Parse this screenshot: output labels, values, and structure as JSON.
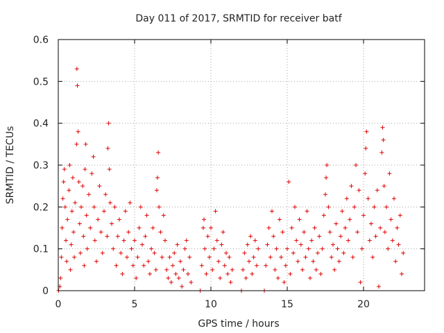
{
  "chart_data": {
    "type": "scatter",
    "title": "Day 011 of 2017, SRMTID for receiver batf",
    "xlabel": "GPS time / hours",
    "ylabel": "SRMTID / TECUs",
    "xlim": [
      0,
      24
    ],
    "ylim": [
      0,
      0.6
    ],
    "xticks": [
      0,
      5,
      10,
      15,
      20
    ],
    "yticks": [
      0,
      0.1,
      0.2,
      0.3,
      0.4,
      0.5,
      0.6
    ],
    "xtick_labels": [
      "0",
      "5",
      "10",
      "15",
      "20"
    ],
    "ytick_labels": [
      "0",
      "0.1",
      "0.2",
      "0.3",
      "0.4",
      "0.5",
      "0.6"
    ],
    "grid": true,
    "marker": "+",
    "color": "#e00000",
    "series": [
      {
        "name": "SRMTID",
        "points": [
          [
            0.02,
            0.0
          ],
          [
            0.1,
            0.01
          ],
          [
            0.15,
            0.03
          ],
          [
            0.2,
            0.08
          ],
          [
            0.25,
            0.15
          ],
          [
            0.3,
            0.22
          ],
          [
            0.35,
            0.26
          ],
          [
            0.4,
            0.29
          ],
          [
            0.45,
            0.2
          ],
          [
            0.5,
            0.12
          ],
          [
            0.55,
            0.07
          ],
          [
            0.6,
            0.17
          ],
          [
            0.7,
            0.24
          ],
          [
            0.75,
            0.3
          ],
          [
            0.8,
            0.05
          ],
          [
            0.85,
            0.11
          ],
          [
            0.9,
            0.19
          ],
          [
            0.95,
            0.27
          ],
          [
            1.0,
            0.14
          ],
          [
            1.05,
            0.08
          ],
          [
            1.1,
            0.21
          ],
          [
            1.2,
            0.35
          ],
          [
            1.22,
            0.53
          ],
          [
            1.25,
            0.49
          ],
          [
            1.3,
            0.38
          ],
          [
            1.35,
            0.26
          ],
          [
            1.4,
            0.16
          ],
          [
            1.45,
            0.09
          ],
          [
            1.5,
            0.2
          ],
          [
            1.6,
            0.25
          ],
          [
            1.65,
            0.13
          ],
          [
            1.7,
            0.06
          ],
          [
            1.75,
            0.29
          ],
          [
            1.8,
            0.35
          ],
          [
            1.85,
            0.18
          ],
          [
            1.9,
            0.1
          ],
          [
            2.0,
            0.23
          ],
          [
            2.1,
            0.15
          ],
          [
            2.2,
            0.28
          ],
          [
            2.3,
            0.32
          ],
          [
            2.35,
            0.2
          ],
          [
            2.4,
            0.12
          ],
          [
            2.5,
            0.07
          ],
          [
            2.6,
            0.17
          ],
          [
            2.7,
            0.25
          ],
          [
            2.8,
            0.14
          ],
          [
            2.9,
            0.09
          ],
          [
            3.0,
            0.19
          ],
          [
            3.1,
            0.23
          ],
          [
            3.2,
            0.13
          ],
          [
            3.25,
            0.34
          ],
          [
            3.3,
            0.4
          ],
          [
            3.35,
            0.29
          ],
          [
            3.4,
            0.21
          ],
          [
            3.5,
            0.16
          ],
          [
            3.6,
            0.1
          ],
          [
            3.7,
            0.2
          ],
          [
            3.8,
            0.06
          ],
          [
            3.9,
            0.13
          ],
          [
            4.0,
            0.17
          ],
          [
            4.1,
            0.09
          ],
          [
            4.2,
            0.04
          ],
          [
            4.3,
            0.12
          ],
          [
            4.4,
            0.19
          ],
          [
            4.5,
            0.08
          ],
          [
            4.6,
            0.14
          ],
          [
            4.7,
            0.21
          ],
          [
            4.8,
            0.1
          ],
          [
            4.9,
            0.06
          ],
          [
            5.0,
            0.12
          ],
          [
            5.1,
            0.03
          ],
          [
            5.2,
            0.08
          ],
          [
            5.3,
            0.15
          ],
          [
            5.4,
            0.2
          ],
          [
            5.5,
            0.11
          ],
          [
            5.6,
            0.06
          ],
          [
            5.7,
            0.13
          ],
          [
            5.8,
            0.18
          ],
          [
            5.9,
            0.07
          ],
          [
            6.0,
            0.04
          ],
          [
            6.1,
            0.1
          ],
          [
            6.2,
            0.15
          ],
          [
            6.3,
            0.09
          ],
          [
            6.4,
            0.05
          ],
          [
            6.45,
            0.24
          ],
          [
            6.5,
            0.27
          ],
          [
            6.55,
            0.33
          ],
          [
            6.6,
            0.2
          ],
          [
            6.7,
            0.14
          ],
          [
            6.8,
            0.08
          ],
          [
            6.9,
            0.18
          ],
          [
            7.0,
            0.12
          ],
          [
            7.1,
            0.05
          ],
          [
            7.2,
            0.03
          ],
          [
            7.3,
            0.08
          ],
          [
            7.4,
            0.02
          ],
          [
            7.5,
            0.06
          ],
          [
            7.6,
            0.09
          ],
          [
            7.7,
            0.04
          ],
          [
            7.8,
            0.11
          ],
          [
            7.9,
            0.03
          ],
          [
            8.0,
            0.07
          ],
          [
            8.1,
            0.01
          ],
          [
            8.2,
            0.05
          ],
          [
            8.3,
            0.1
          ],
          [
            8.4,
            0.12
          ],
          [
            8.5,
            0.04
          ],
          [
            8.6,
            0.08
          ],
          [
            8.7,
            0.02
          ],
          [
            9.3,
            0.0
          ],
          [
            9.4,
            0.06
          ],
          [
            9.5,
            0.15
          ],
          [
            9.55,
            0.17
          ],
          [
            9.6,
            0.1
          ],
          [
            9.7,
            0.04
          ],
          [
            9.8,
            0.13
          ],
          [
            9.9,
            0.08
          ],
          [
            10.0,
            0.15
          ],
          [
            10.1,
            0.05
          ],
          [
            10.2,
            0.1
          ],
          [
            10.3,
            0.19
          ],
          [
            10.4,
            0.12
          ],
          [
            10.5,
            0.07
          ],
          [
            10.6,
            0.03
          ],
          [
            10.7,
            0.11
          ],
          [
            10.8,
            0.14
          ],
          [
            10.9,
            0.06
          ],
          [
            11.0,
            0.09
          ],
          [
            11.1,
            0.04
          ],
          [
            11.2,
            0.08
          ],
          [
            11.3,
            0.02
          ],
          [
            11.4,
            0.05
          ],
          [
            12.0,
            0.0
          ],
          [
            12.1,
            0.05
          ],
          [
            12.2,
            0.09
          ],
          [
            12.3,
            0.03
          ],
          [
            12.4,
            0.11
          ],
          [
            12.5,
            0.07
          ],
          [
            12.6,
            0.13
          ],
          [
            12.7,
            0.04
          ],
          [
            12.8,
            0.08
          ],
          [
            12.9,
            0.12
          ],
          [
            13.0,
            0.06
          ],
          [
            13.1,
            0.1
          ],
          [
            13.5,
            0.0
          ],
          [
            13.6,
            0.06
          ],
          [
            13.7,
            0.11
          ],
          [
            13.8,
            0.15
          ],
          [
            13.9,
            0.08
          ],
          [
            14.0,
            0.19
          ],
          [
            14.1,
            0.13
          ],
          [
            14.2,
            0.05
          ],
          [
            14.3,
            0.1
          ],
          [
            14.4,
            0.03
          ],
          [
            14.5,
            0.17
          ],
          [
            14.6,
            0.08
          ],
          [
            14.7,
            0.14
          ],
          [
            14.8,
            0.02
          ],
          [
            14.9,
            0.06
          ],
          [
            15.0,
            0.1
          ],
          [
            15.1,
            0.26
          ],
          [
            15.2,
            0.04
          ],
          [
            15.3,
            0.15
          ],
          [
            15.4,
            0.09
          ],
          [
            15.5,
            0.2
          ],
          [
            15.6,
            0.12
          ],
          [
            15.7,
            0.07
          ],
          [
            15.8,
            0.17
          ],
          [
            15.9,
            0.11
          ],
          [
            16.0,
            0.05
          ],
          [
            16.1,
            0.14
          ],
          [
            16.2,
            0.08
          ],
          [
            16.3,
            0.19
          ],
          [
            16.4,
            0.1
          ],
          [
            16.5,
            0.03
          ],
          [
            16.6,
            0.12
          ],
          [
            16.7,
            0.07
          ],
          [
            16.8,
            0.15
          ],
          [
            16.9,
            0.05
          ],
          [
            17.0,
            0.09
          ],
          [
            17.1,
            0.13
          ],
          [
            17.2,
            0.04
          ],
          [
            17.3,
            0.1
          ],
          [
            17.4,
            0.18
          ],
          [
            17.5,
            0.23
          ],
          [
            17.55,
            0.27
          ],
          [
            17.6,
            0.3
          ],
          [
            17.7,
            0.2
          ],
          [
            17.8,
            0.14
          ],
          [
            17.9,
            0.08
          ],
          [
            18.0,
            0.11
          ],
          [
            18.1,
            0.05
          ],
          [
            18.2,
            0.16
          ],
          [
            18.3,
            0.1
          ],
          [
            18.4,
            0.07
          ],
          [
            18.5,
            0.13
          ],
          [
            18.6,
            0.19
          ],
          [
            18.7,
            0.09
          ],
          [
            18.8,
            0.15
          ],
          [
            18.9,
            0.22
          ],
          [
            19.0,
            0.12
          ],
          [
            19.1,
            0.17
          ],
          [
            19.2,
            0.25
          ],
          [
            19.3,
            0.08
          ],
          [
            19.4,
            0.2
          ],
          [
            19.5,
            0.3
          ],
          [
            19.6,
            0.14
          ],
          [
            19.7,
            0.24
          ],
          [
            19.8,
            0.02
          ],
          [
            19.9,
            0.1
          ],
          [
            20.0,
            0.18
          ],
          [
            20.1,
            0.28
          ],
          [
            20.15,
            0.34
          ],
          [
            20.2,
            0.38
          ],
          [
            20.3,
            0.22
          ],
          [
            20.4,
            0.12
          ],
          [
            20.5,
            0.16
          ],
          [
            20.6,
            0.08
          ],
          [
            20.7,
            0.2
          ],
          [
            20.8,
            0.13
          ],
          [
            20.9,
            0.24
          ],
          [
            21.0,
            0.01
          ],
          [
            21.1,
            0.15
          ],
          [
            21.2,
            0.33
          ],
          [
            21.25,
            0.39
          ],
          [
            21.3,
            0.36
          ],
          [
            21.35,
            0.25
          ],
          [
            21.4,
            0.14
          ],
          [
            21.5,
            0.2
          ],
          [
            21.6,
            0.1
          ],
          [
            21.7,
            0.28
          ],
          [
            21.8,
            0.17
          ],
          [
            21.9,
            0.12
          ],
          [
            22.0,
            0.22
          ],
          [
            22.1,
            0.07
          ],
          [
            22.2,
            0.15
          ],
          [
            22.3,
            0.11
          ],
          [
            22.4,
            0.18
          ],
          [
            22.5,
            0.04
          ],
          [
            22.6,
            0.09
          ]
        ]
      }
    ]
  }
}
